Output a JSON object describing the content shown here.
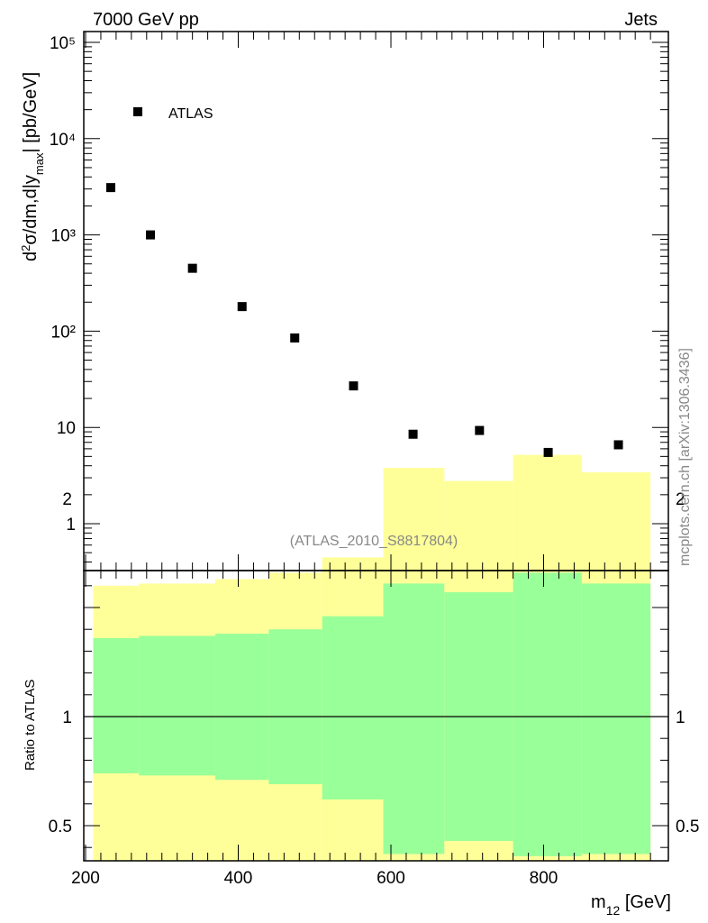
{
  "header": {
    "energy_label": "7000 GeV pp",
    "process_label": "Jets"
  },
  "watermark": "mcplots.cern.ch [arXiv:1306.3436]",
  "analysis_label": "(ATLAS_2010_S8817804)",
  "colors": {
    "data_marker": "#000000",
    "band_inner": "#99ff99",
    "band_outer": "#ffff99",
    "ratio_line": "#000000",
    "label_grey": "#888888"
  },
  "chart_data": [
    {
      "type": "scatter",
      "name": "main-plot",
      "ylabel": "d²σ/dm,d|y_max| [pb/GeV]",
      "yscale": "log",
      "xlim": [
        200,
        950
      ],
      "ylim": [
        0.3,
        150000
      ],
      "y_tick_labels": [
        "1",
        "10",
        "10²",
        "10³",
        "10⁴",
        "10⁵"
      ],
      "y_tick_values": [
        1,
        10,
        100,
        1000,
        10000,
        100000
      ],
      "legend": {
        "label": "ATLAS",
        "placement": "top-left"
      },
      "series": [
        {
          "name": "ATLAS",
          "x": [
            233,
            285,
            340,
            405,
            474,
            551,
            629,
            716,
            806,
            898
          ],
          "y": [
            3100,
            1000,
            450,
            180,
            85,
            27,
            8.5,
            9.3,
            5.5,
            6.6
          ]
        }
      ]
    },
    {
      "type": "area",
      "name": "ratio-plot",
      "ylabel": "Ratio to ATLAS",
      "xlabel": "m₁₂ [GeV]",
      "xlim": [
        190,
        950
      ],
      "ylim": [
        0.35,
        2.25
      ],
      "x_tick_labels": [
        "200",
        "400",
        "600",
        "800"
      ],
      "x_tick_values": [
        200,
        400,
        600,
        800
      ],
      "y_tick_labels": [
        "0.5",
        "1",
        "2"
      ],
      "y_tick_values": [
        0.5,
        1,
        2
      ],
      "reference_line": 1,
      "bin_edges": [
        210,
        270,
        370,
        440,
        510,
        590,
        670,
        760,
        850,
        940
      ],
      "band_outer_upper": [
        1.6,
        1.61,
        1.63,
        1.66,
        1.73,
        2.14,
        2.08,
        2.2,
        2.12
      ],
      "band_inner_upper": [
        1.36,
        1.37,
        1.38,
        1.4,
        1.46,
        1.61,
        1.57,
        1.66,
        1.61
      ],
      "band_inner_lower": [
        0.74,
        0.73,
        0.71,
        0.69,
        0.62,
        0.37,
        0.43,
        0.36,
        0.37
      ],
      "band_outer_lower": [
        0.35,
        0.35,
        0.35,
        0.35,
        0.35,
        0.35,
        0.35,
        0.35,
        0.35
      ]
    }
  ]
}
